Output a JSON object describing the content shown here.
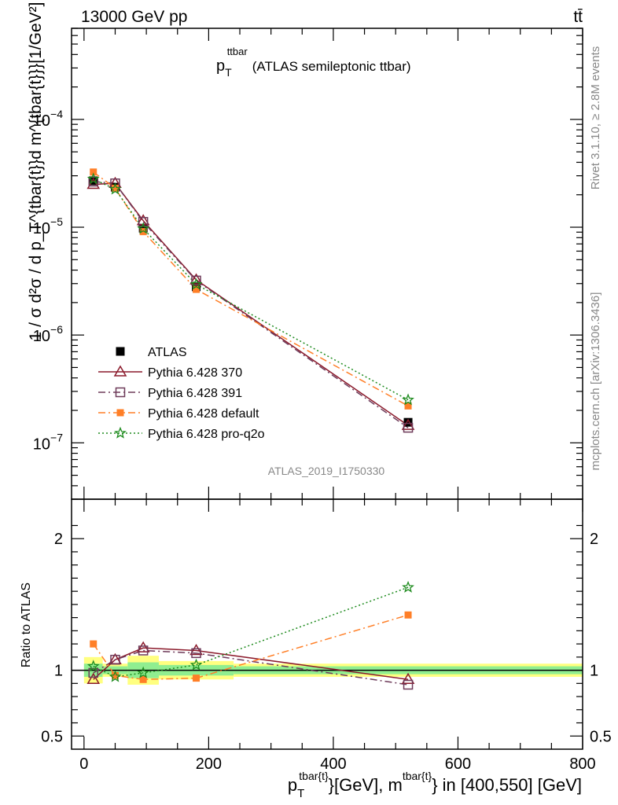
{
  "header": {
    "left": "13000 GeV pp",
    "right": "tt̄"
  },
  "side": {
    "rivet": "Rivet 3.1.10, ≥ 2.8M events",
    "mcplots": "mcplots.cern.ch [arXiv:1306.3436]"
  },
  "chart_data": [
    {
      "type": "line",
      "title_main": "p",
      "title_sub": "T",
      "title_sup": "ttbar",
      "title_rest": "(ATLAS semileptonic ttbar)",
      "watermark": "ATLAS_2019_I1750330",
      "ylabel": "1 / σ d²σ / d p_T^{tbar{t}}d m^{tbar{t}}}[1/GeV²]",
      "yscale": "log",
      "ylim": [
        3e-08,
        0.0007
      ],
      "xlim": [
        -20,
        800
      ],
      "y_ticks": [
        {
          "v": 1e-07,
          "base": "10",
          "exp": "−7"
        },
        {
          "v": 1e-06,
          "base": "10",
          "exp": "−6"
        },
        {
          "v": 1e-05,
          "base": "10",
          "exp": "−5"
        },
        {
          "v": 0.0001,
          "base": "10",
          "exp": "−4"
        }
      ],
      "legend_position": "lower-left",
      "x": [
        15,
        50,
        95,
        180,
        520
      ],
      "series": [
        {
          "name": "ATLAS",
          "color": "#000000",
          "marker": "square-filled",
          "dash": "none",
          "values": [
            2.7e-05,
            2.35e-05,
            9.8e-06,
            2.8e-06,
            1.55e-07
          ]
        },
        {
          "name": "Pythia 6.428 370",
          "color": "#8b1a2b",
          "marker": "triangle-open",
          "dash": "solid",
          "values": [
            2.5e-05,
            2.55e-05,
            1.15e-05,
            3.25e-06,
            1.45e-07
          ]
        },
        {
          "name": "Pythia 6.428 391",
          "color": "#6e3b5a",
          "marker": "square-open",
          "dash": "dashdot",
          "values": [
            2.65e-05,
            2.55e-05,
            1.12e-05,
            3.2e-06,
            1.38e-07
          ]
        },
        {
          "name": "Pythia 6.428 default",
          "color": "#ff7f27",
          "marker": "square-filled-small",
          "dash": "dashdot",
          "values": [
            3.25e-05,
            2.3e-05,
            9.1e-06,
            2.65e-06,
            2.2e-07
          ]
        },
        {
          "name": "Pythia 6.428 pro-q2o",
          "color": "#1e8b1e",
          "marker": "star",
          "dash": "dotted",
          "values": [
            2.8e-05,
            2.25e-05,
            9.7e-06,
            2.95e-06,
            2.5e-07
          ]
        }
      ]
    },
    {
      "type": "line",
      "ylabel": "Ratio to ATLAS",
      "xlabel_main": "p",
      "xlabel_sub": "T",
      "xlabel_sup1": "tbar{t}",
      "xlabel_mid": "}[GeV], m",
      "xlabel_sup2": "tbar{t}",
      "xlabel_end": "} in [400,550] [GeV]",
      "ylim": [
        0.4,
        2.3
      ],
      "xlim": [
        -20,
        800
      ],
      "x_ticks": [
        "0",
        "200",
        "400",
        "600",
        "800"
      ],
      "y_ticks": [
        "0.5",
        "1",
        "2"
      ],
      "band_inner_color": "#90ee90",
      "band_outer_color": "#ffff80",
      "bands": [
        {
          "x0": 0,
          "x1": 30,
          "inner": [
            0.95,
            1.05
          ],
          "outer": [
            0.9,
            1.1
          ]
        },
        {
          "x0": 30,
          "x1": 70,
          "inner": [
            0.97,
            1.03
          ],
          "outer": [
            0.95,
            1.05
          ]
        },
        {
          "x0": 70,
          "x1": 120,
          "inner": [
            0.94,
            1.06
          ],
          "outer": [
            0.89,
            1.11
          ]
        },
        {
          "x0": 120,
          "x1": 240,
          "inner": [
            0.96,
            1.04
          ],
          "outer": [
            0.93,
            1.07
          ]
        },
        {
          "x0": 240,
          "x1": 800,
          "inner": [
            0.97,
            1.03
          ],
          "outer": [
            0.95,
            1.05
          ]
        }
      ],
      "x": [
        15,
        50,
        95,
        180,
        520
      ],
      "series": [
        {
          "name": "Pythia 6.428 370",
          "color": "#8b1a2b",
          "marker": "triangle-open",
          "dash": "solid",
          "values": [
            0.93,
            1.08,
            1.17,
            1.15,
            0.93
          ]
        },
        {
          "name": "Pythia 6.428 391",
          "color": "#6e3b5a",
          "marker": "square-open",
          "dash": "dashdot",
          "values": [
            0.98,
            1.08,
            1.15,
            1.13,
            0.89
          ]
        },
        {
          "name": "Pythia 6.428 default",
          "color": "#ff7f27",
          "marker": "square-filled-small",
          "dash": "dashdot",
          "values": [
            1.2,
            0.96,
            0.93,
            0.94,
            1.42
          ]
        },
        {
          "name": "Pythia 6.428 pro-q2o",
          "color": "#1e8b1e",
          "marker": "star",
          "dash": "dotted",
          "values": [
            1.03,
            0.95,
            0.98,
            1.04,
            1.63
          ]
        }
      ]
    }
  ]
}
